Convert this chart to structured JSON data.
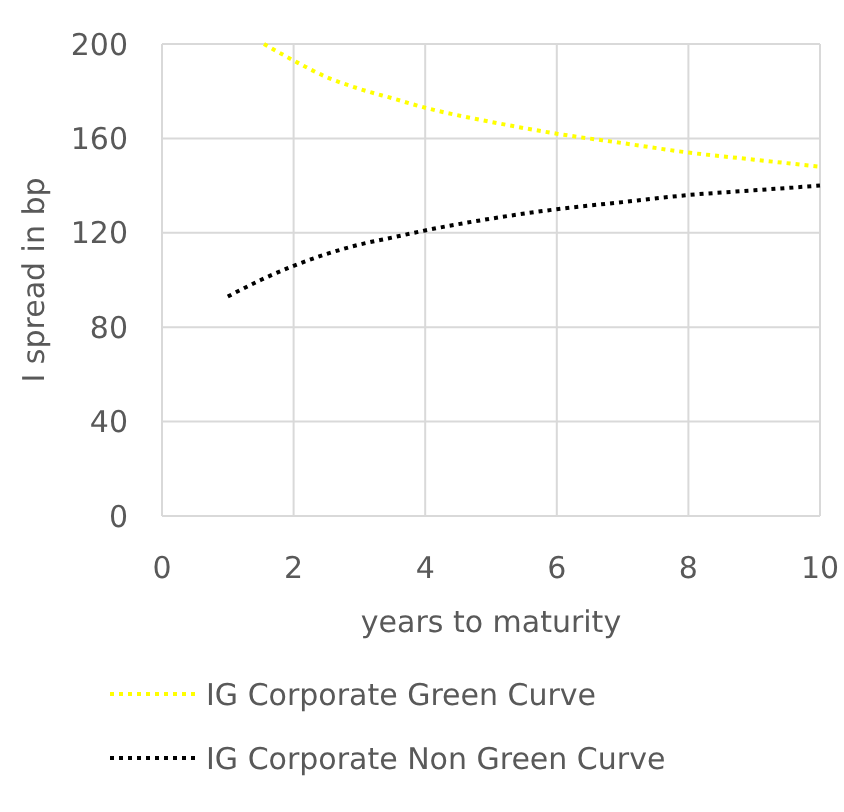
{
  "chart_data": {
    "type": "line",
    "xlabel": "years to maturity",
    "ylabel": "I spread in bp",
    "xlim": [
      0,
      10
    ],
    "xticks": [
      0,
      2,
      4,
      6,
      8,
      10
    ],
    "ylim": [
      0,
      200
    ],
    "yticks": [
      0,
      40,
      80,
      120,
      160,
      200
    ],
    "grid": true,
    "legend": "bottom",
    "line_style": "dotted",
    "marker": "none",
    "series": [
      {
        "name": "IG Corporate Green Curve",
        "color": "#ffff00",
        "x": [
          1.55,
          2,
          2.5,
          3,
          3.5,
          4,
          5,
          6,
          7,
          8,
          9,
          10
        ],
        "values": [
          200,
          193,
          186,
          181,
          177,
          173,
          167,
          162,
          158,
          154,
          151,
          148
        ]
      },
      {
        "name": "IG Corporate Non Green Curve",
        "color": "#000000",
        "x": [
          1,
          1.5,
          2,
          2.5,
          3,
          3.5,
          4,
          5,
          6,
          7,
          8,
          9,
          10
        ],
        "values": [
          93,
          100,
          106,
          111,
          115,
          118,
          121,
          126,
          130,
          133,
          136,
          138,
          140
        ]
      }
    ]
  }
}
